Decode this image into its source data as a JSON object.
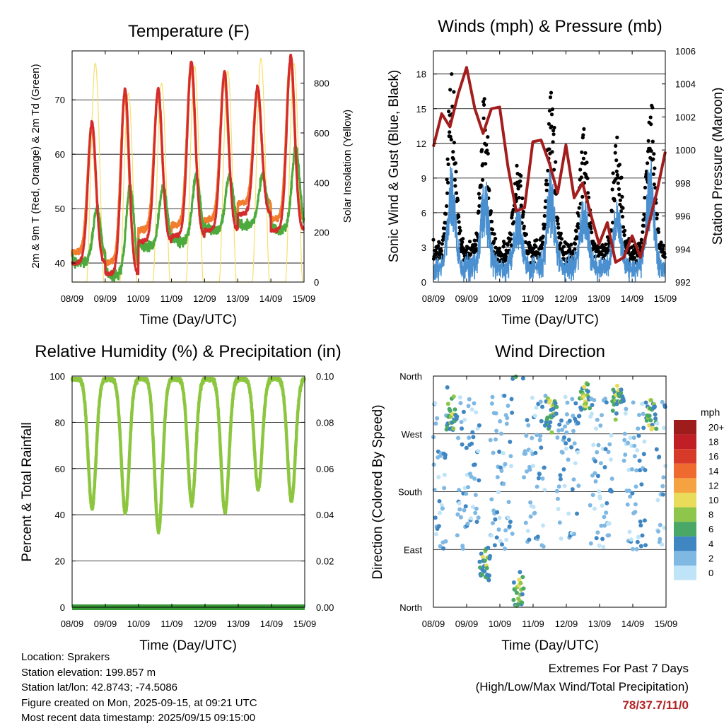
{
  "panels": {
    "temperature": {
      "title": "Temperature (F)",
      "ylabel": "2m & 9m T (Red, Orange) & 2m Td (Green)",
      "y2label": "Solar Insolation (Yellow)",
      "xlabel": "Time (Day/UTC)"
    },
    "winds": {
      "title": "Winds (mph) & Pressure (mb)",
      "ylabel": "Sonic Wind & Gust (Blue, Black)",
      "y2label": "Station Pressure (Maroon)",
      "xlabel": "Time (Day/UTC)"
    },
    "humidity": {
      "title": "Relative Humidity (%) & Precipitation (in)",
      "ylabel": "Percent & Total Rainfall",
      "xlabel": "Time (Day/UTC)"
    },
    "direction": {
      "title": "Wind Direction",
      "ylabel": "Direction (Colored By Speed)",
      "xlabel": "Time (Day/UTC)",
      "colorbar_title": "mph",
      "colorbar_labels": [
        "20+",
        "18",
        "16",
        "14",
        "12",
        "10",
        "8",
        "6",
        "4",
        "2",
        "0"
      ],
      "colorbar_colors": [
        "#9e1c1c",
        "#bf1f25",
        "#d83a2a",
        "#ee6a2e",
        "#f5a341",
        "#e8dc5a",
        "#8dc64a",
        "#49a866",
        "#3f86c2",
        "#7fb8e3",
        "#bfe3f7"
      ]
    }
  },
  "info": {
    "location": "Location: Sprakers",
    "elevation": "Station elevation: 199.857 m",
    "latlon": "Station lat/lon: 42.8743; -74.5086",
    "created": "Figure created on Mon, 2025-09-15, at 09:21 UTC",
    "recent": "Most recent data timestamp: 2025/09/15 09:15:00"
  },
  "extremes": {
    "title": "Extremes For Past 7 Days",
    "subtitle": "(High/Low/Max Wind/Total Precipitation)",
    "values": "78/37.7/11/0"
  },
  "chart_data": [
    {
      "type": "line",
      "title": "Temperature (F)",
      "xlabel": "Time (Day/UTC)",
      "ylabel": "2m & 9m T (Red, Orange) & 2m Td (Green)",
      "y2label": "Solar Insolation (Yellow)",
      "x_ticks": [
        "08/09",
        "09/09",
        "10/09",
        "11/09",
        "12/09",
        "13/09",
        "14/09",
        "15/09"
      ],
      "xlim": [
        0,
        7
      ],
      "ylim": [
        36.5,
        79
      ],
      "y_ticks": [
        40,
        50,
        60,
        70
      ],
      "y2lim": [
        0,
        930
      ],
      "y2_ticks": [
        0,
        200,
        400,
        600,
        800
      ],
      "temp_max": [
        66,
        72,
        72,
        77,
        75,
        72.5,
        78
      ],
      "temp_min": [
        40,
        38,
        44,
        45,
        46,
        49,
        46
      ],
      "dewpoint_max": [
        50,
        54,
        54,
        56,
        56,
        56,
        61
      ],
      "dewpoint_min": [
        40,
        37.7,
        43,
        44,
        46,
        47,
        46
      ],
      "solar_peak": [
        880,
        760,
        800,
        870,
        850,
        900,
        880
      ],
      "series_colors": {
        "t2m": "#d42c2c",
        "t9m": "#f27d2f",
        "td2m": "#4daa3c",
        "solar": "#f6df6a"
      }
    },
    {
      "type": "scatter",
      "title": "Winds (mph) & Pressure (mb)",
      "xlabel": "Time (Day/UTC)",
      "ylabel": "Sonic Wind & Gust (Blue, Black)",
      "y2label": "Station Pressure (Maroon)",
      "x_ticks": [
        "08/09",
        "09/09",
        "10/09",
        "11/09",
        "12/09",
        "13/09",
        "14/09",
        "15/09"
      ],
      "xlim": [
        0,
        7
      ],
      "ylim": [
        0,
        20
      ],
      "y_ticks": [
        0,
        3,
        6,
        9,
        12,
        15,
        18
      ],
      "y2lim": [
        992,
        1006
      ],
      "y2_ticks": [
        992,
        994,
        996,
        998,
        1000,
        1002,
        1004,
        1006
      ],
      "gust_daily_max": [
        18,
        16,
        11,
        17,
        13,
        13,
        17
      ],
      "wind_daily_max": [
        10,
        9,
        7,
        10,
        8,
        7,
        11
      ],
      "pressure": {
        "x": [
          0,
          0.25,
          0.5,
          0.75,
          1.0,
          1.25,
          1.5,
          1.75,
          2.0,
          2.25,
          2.5,
          2.75,
          3.0,
          3.25,
          3.5,
          3.75,
          4.0,
          4.25,
          4.5,
          4.75,
          5.0,
          5.25,
          5.5,
          5.75,
          6.0,
          6.25,
          6.5,
          6.75,
          7.0
        ],
        "y": [
          1000.2,
          1002.2,
          1001.4,
          1003.4,
          1005.0,
          1002.5,
          1001.0,
          1002.5,
          1002.6,
          999.0,
          996.3,
          996.5,
          1000.5,
          1000.6,
          999.2,
          997.4,
          1000.3,
          997.1,
          998.0,
          996.1,
          994.3,
          995.6,
          993.2,
          993.5,
          994.8,
          993.5,
          995.5,
          997.5,
          999.9
        ]
      },
      "series_colors": {
        "wind": "#4a90d0",
        "gust": "#000000",
        "pressure": "#a31d1d"
      }
    },
    {
      "type": "line",
      "title": "Relative Humidity (%) & Precipitation (in)",
      "xlabel": "Time (Day/UTC)",
      "ylabel": "Percent & Total Rainfall",
      "x_ticks": [
        "08/09",
        "09/09",
        "10/09",
        "11/09",
        "12/09",
        "13/09",
        "14/09",
        "15/09"
      ],
      "xlim": [
        0,
        7
      ],
      "ylim": [
        0,
        100
      ],
      "y_ticks": [
        0,
        20,
        40,
        60,
        80,
        100
      ],
      "y2lim": [
        0,
        0.1
      ],
      "y2_ticks": [
        "0.00",
        "0.02",
        "0.04",
        "0.06",
        "0.08",
        "0.10"
      ],
      "rh_daily_min": [
        43,
        41,
        33,
        45,
        41,
        51,
        46
      ],
      "rh_max": 99,
      "precipitation_total": 0,
      "series_colors": {
        "rh": "#8cc63f",
        "precip": "#3a9a3a"
      }
    },
    {
      "type": "scatter",
      "title": "Wind Direction",
      "xlabel": "Time (Day/UTC)",
      "ylabel": "Direction (Colored By Speed)",
      "x_ticks": [
        "08/09",
        "09/09",
        "10/09",
        "11/09",
        "12/09",
        "13/09",
        "14/09",
        "15/09"
      ],
      "xlim": [
        0,
        7
      ],
      "y_ticks": [
        "North",
        "East",
        "South",
        "West",
        "North"
      ],
      "ylim": [
        0,
        360
      ],
      "daily_core_direction": [
        300,
        65,
        20,
        300,
        330,
        320,
        300
      ],
      "colorbar_units": "mph"
    }
  ]
}
